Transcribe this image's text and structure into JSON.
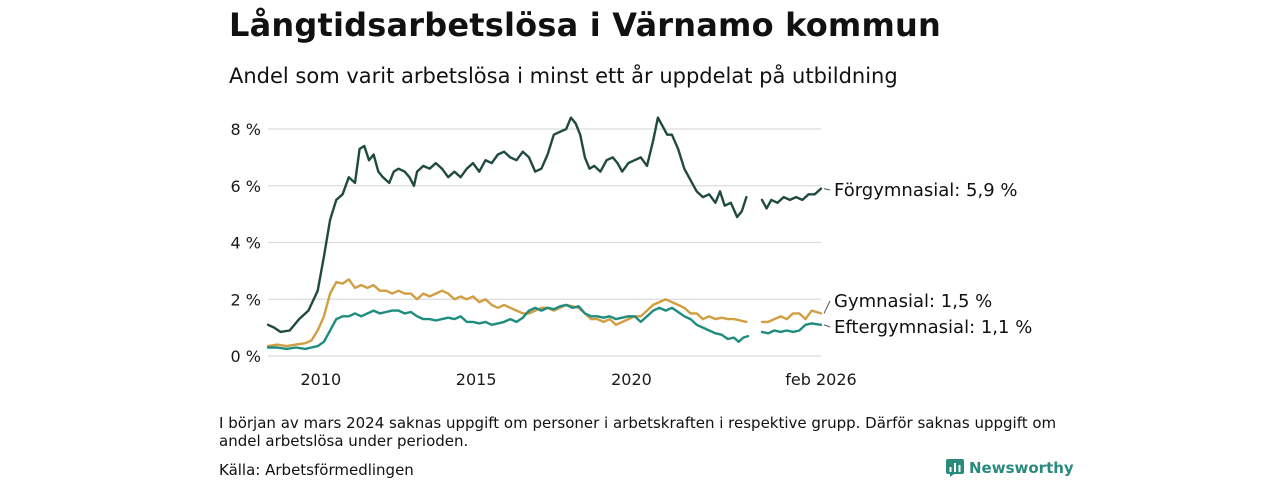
{
  "title": "Långtidsarbetslösa i Värnamo kommun",
  "subtitle": "Andel som varit arbetslösa i minst ett år uppdelat på utbildning",
  "note": "I början av mars 2024 saknas uppgift om personer i arbetskraften i respektive grupp. Därför saknas uppgift om andel arbetslösa under perioden.",
  "source": "Källa: Arbetsförmedlingen",
  "brand": {
    "name": "Newsworthy",
    "icon": "newsworthy-logo-icon",
    "color": "#2a8a7e"
  },
  "chart_data": {
    "type": "line",
    "title": "Långtidsarbetslösa i Värnamo kommun",
    "xlabel": "",
    "ylabel": "",
    "xlim": [
      2008.3,
      2026.1
    ],
    "ylim": [
      0,
      8
    ],
    "grid": true,
    "y_ticks": [
      0,
      2,
      4,
      6,
      8
    ],
    "y_tick_labels": [
      "0 %",
      "2 %",
      "4 %",
      "6 %",
      "8 %"
    ],
    "x_ticks": [
      2010,
      2015,
      2020,
      2026.1
    ],
    "x_tick_labels": [
      "2010",
      "2015",
      "2020",
      "feb 2026"
    ],
    "gap": [
      2023.75,
      2024.15
    ],
    "series": [
      {
        "name": "Förgymnasial",
        "end_label": "Förgymnasial: 5,9 %",
        "color": "#1f4a40",
        "points": [
          [
            2008.3,
            1.1
          ],
          [
            2008.5,
            1.0
          ],
          [
            2008.7,
            0.85
          ],
          [
            2009.0,
            0.9
          ],
          [
            2009.3,
            1.3
          ],
          [
            2009.6,
            1.6
          ],
          [
            2009.9,
            2.3
          ],
          [
            2010.1,
            3.5
          ],
          [
            2010.3,
            4.8
          ],
          [
            2010.5,
            5.5
          ],
          [
            2010.7,
            5.7
          ],
          [
            2010.9,
            6.3
          ],
          [
            2011.1,
            6.1
          ],
          [
            2011.25,
            7.3
          ],
          [
            2011.4,
            7.4
          ],
          [
            2011.55,
            6.9
          ],
          [
            2011.7,
            7.1
          ],
          [
            2011.85,
            6.5
          ],
          [
            2012.0,
            6.3
          ],
          [
            2012.2,
            6.1
          ],
          [
            2012.35,
            6.5
          ],
          [
            2012.5,
            6.6
          ],
          [
            2012.7,
            6.5
          ],
          [
            2012.85,
            6.3
          ],
          [
            2013.0,
            6.0
          ],
          [
            2013.1,
            6.5
          ],
          [
            2013.3,
            6.7
          ],
          [
            2013.5,
            6.6
          ],
          [
            2013.7,
            6.8
          ],
          [
            2013.9,
            6.6
          ],
          [
            2014.1,
            6.3
          ],
          [
            2014.3,
            6.5
          ],
          [
            2014.5,
            6.3
          ],
          [
            2014.7,
            6.6
          ],
          [
            2014.9,
            6.8
          ],
          [
            2015.1,
            6.5
          ],
          [
            2015.3,
            6.9
          ],
          [
            2015.5,
            6.8
          ],
          [
            2015.7,
            7.1
          ],
          [
            2015.9,
            7.2
          ],
          [
            2016.1,
            7.0
          ],
          [
            2016.3,
            6.9
          ],
          [
            2016.5,
            7.2
          ],
          [
            2016.7,
            7.0
          ],
          [
            2016.9,
            6.5
          ],
          [
            2017.1,
            6.6
          ],
          [
            2017.3,
            7.1
          ],
          [
            2017.5,
            7.8
          ],
          [
            2017.7,
            7.9
          ],
          [
            2017.9,
            8.0
          ],
          [
            2018.05,
            8.4
          ],
          [
            2018.2,
            8.2
          ],
          [
            2018.35,
            7.8
          ],
          [
            2018.5,
            7.0
          ],
          [
            2018.65,
            6.6
          ],
          [
            2018.8,
            6.7
          ],
          [
            2019.0,
            6.5
          ],
          [
            2019.2,
            6.9
          ],
          [
            2019.4,
            7.0
          ],
          [
            2019.55,
            6.8
          ],
          [
            2019.7,
            6.5
          ],
          [
            2019.9,
            6.8
          ],
          [
            2020.1,
            6.9
          ],
          [
            2020.3,
            7.0
          ],
          [
            2020.5,
            6.7
          ],
          [
            2020.7,
            7.6
          ],
          [
            2020.85,
            8.4
          ],
          [
            2021.0,
            8.1
          ],
          [
            2021.15,
            7.8
          ],
          [
            2021.3,
            7.8
          ],
          [
            2021.5,
            7.3
          ],
          [
            2021.7,
            6.6
          ],
          [
            2021.9,
            6.2
          ],
          [
            2022.1,
            5.8
          ],
          [
            2022.3,
            5.6
          ],
          [
            2022.5,
            5.7
          ],
          [
            2022.7,
            5.4
          ],
          [
            2022.85,
            5.8
          ],
          [
            2023.0,
            5.3
          ],
          [
            2023.2,
            5.4
          ],
          [
            2023.4,
            4.9
          ],
          [
            2023.55,
            5.1
          ],
          [
            2023.7,
            5.6
          ],
          [
            2024.2,
            5.5
          ],
          [
            2024.35,
            5.2
          ],
          [
            2024.5,
            5.5
          ],
          [
            2024.7,
            5.4
          ],
          [
            2024.9,
            5.6
          ],
          [
            2025.1,
            5.5
          ],
          [
            2025.3,
            5.6
          ],
          [
            2025.5,
            5.5
          ],
          [
            2025.7,
            5.7
          ],
          [
            2025.9,
            5.7
          ],
          [
            2026.1,
            5.9
          ]
        ]
      },
      {
        "name": "Gymnasial",
        "end_label": "Gymnasial: 1,5 %",
        "color": "#d29e42",
        "points": [
          [
            2008.3,
            0.35
          ],
          [
            2008.6,
            0.4
          ],
          [
            2008.9,
            0.35
          ],
          [
            2009.2,
            0.4
          ],
          [
            2009.5,
            0.45
          ],
          [
            2009.7,
            0.55
          ],
          [
            2009.9,
            0.9
          ],
          [
            2010.1,
            1.4
          ],
          [
            2010.3,
            2.2
          ],
          [
            2010.5,
            2.6
          ],
          [
            2010.7,
            2.55
          ],
          [
            2010.9,
            2.7
          ],
          [
            2011.1,
            2.4
          ],
          [
            2011.3,
            2.5
          ],
          [
            2011.5,
            2.4
          ],
          [
            2011.7,
            2.5
          ],
          [
            2011.9,
            2.3
          ],
          [
            2012.1,
            2.3
          ],
          [
            2012.3,
            2.2
          ],
          [
            2012.5,
            2.3
          ],
          [
            2012.7,
            2.2
          ],
          [
            2012.9,
            2.2
          ],
          [
            2013.1,
            2.0
          ],
          [
            2013.3,
            2.2
          ],
          [
            2013.5,
            2.1
          ],
          [
            2013.7,
            2.2
          ],
          [
            2013.9,
            2.3
          ],
          [
            2014.1,
            2.2
          ],
          [
            2014.3,
            2.0
          ],
          [
            2014.5,
            2.1
          ],
          [
            2014.7,
            2.0
          ],
          [
            2014.9,
            2.1
          ],
          [
            2015.1,
            1.9
          ],
          [
            2015.3,
            2.0
          ],
          [
            2015.5,
            1.8
          ],
          [
            2015.7,
            1.7
          ],
          [
            2015.9,
            1.8
          ],
          [
            2016.1,
            1.7
          ],
          [
            2016.3,
            1.6
          ],
          [
            2016.5,
            1.5
          ],
          [
            2016.7,
            1.5
          ],
          [
            2016.9,
            1.6
          ],
          [
            2017.1,
            1.7
          ],
          [
            2017.3,
            1.7
          ],
          [
            2017.5,
            1.6
          ],
          [
            2017.7,
            1.7
          ],
          [
            2017.9,
            1.8
          ],
          [
            2018.1,
            1.75
          ],
          [
            2018.3,
            1.7
          ],
          [
            2018.5,
            1.5
          ],
          [
            2018.7,
            1.3
          ],
          [
            2018.9,
            1.3
          ],
          [
            2019.1,
            1.2
          ],
          [
            2019.3,
            1.3
          ],
          [
            2019.5,
            1.1
          ],
          [
            2019.7,
            1.2
          ],
          [
            2019.9,
            1.3
          ],
          [
            2020.1,
            1.4
          ],
          [
            2020.3,
            1.4
          ],
          [
            2020.5,
            1.6
          ],
          [
            2020.7,
            1.8
          ],
          [
            2020.9,
            1.9
          ],
          [
            2021.1,
            2.0
          ],
          [
            2021.3,
            1.9
          ],
          [
            2021.5,
            1.8
          ],
          [
            2021.7,
            1.7
          ],
          [
            2021.9,
            1.5
          ],
          [
            2022.1,
            1.5
          ],
          [
            2022.3,
            1.3
          ],
          [
            2022.5,
            1.4
          ],
          [
            2022.7,
            1.3
          ],
          [
            2022.9,
            1.35
          ],
          [
            2023.1,
            1.3
          ],
          [
            2023.3,
            1.3
          ],
          [
            2023.5,
            1.25
          ],
          [
            2023.7,
            1.2
          ],
          [
            2024.2,
            1.2
          ],
          [
            2024.4,
            1.2
          ],
          [
            2024.6,
            1.3
          ],
          [
            2024.8,
            1.4
          ],
          [
            2025.0,
            1.3
          ],
          [
            2025.2,
            1.5
          ],
          [
            2025.4,
            1.5
          ],
          [
            2025.6,
            1.3
          ],
          [
            2025.8,
            1.6
          ],
          [
            2026.1,
            1.5
          ]
        ]
      },
      {
        "name": "Eftergymnasial",
        "end_label": "Eftergymnasial: 1,1 %",
        "color": "#1e8c7e",
        "points": [
          [
            2008.3,
            0.3
          ],
          [
            2008.6,
            0.3
          ],
          [
            2008.9,
            0.25
          ],
          [
            2009.2,
            0.3
          ],
          [
            2009.5,
            0.25
          ],
          [
            2009.7,
            0.3
          ],
          [
            2009.9,
            0.35
          ],
          [
            2010.1,
            0.5
          ],
          [
            2010.3,
            0.9
          ],
          [
            2010.5,
            1.3
          ],
          [
            2010.7,
            1.4
          ],
          [
            2010.9,
            1.4
          ],
          [
            2011.1,
            1.5
          ],
          [
            2011.3,
            1.4
          ],
          [
            2011.5,
            1.5
          ],
          [
            2011.7,
            1.6
          ],
          [
            2011.9,
            1.5
          ],
          [
            2012.1,
            1.55
          ],
          [
            2012.3,
            1.6
          ],
          [
            2012.5,
            1.6
          ],
          [
            2012.7,
            1.5
          ],
          [
            2012.9,
            1.55
          ],
          [
            2013.1,
            1.4
          ],
          [
            2013.3,
            1.3
          ],
          [
            2013.5,
            1.3
          ],
          [
            2013.7,
            1.25
          ],
          [
            2013.9,
            1.3
          ],
          [
            2014.1,
            1.35
          ],
          [
            2014.3,
            1.3
          ],
          [
            2014.5,
            1.4
          ],
          [
            2014.7,
            1.2
          ],
          [
            2014.9,
            1.2
          ],
          [
            2015.1,
            1.15
          ],
          [
            2015.3,
            1.2
          ],
          [
            2015.5,
            1.1
          ],
          [
            2015.7,
            1.15
          ],
          [
            2015.9,
            1.2
          ],
          [
            2016.1,
            1.3
          ],
          [
            2016.3,
            1.2
          ],
          [
            2016.5,
            1.35
          ],
          [
            2016.7,
            1.6
          ],
          [
            2016.9,
            1.7
          ],
          [
            2017.1,
            1.6
          ],
          [
            2017.3,
            1.7
          ],
          [
            2017.5,
            1.65
          ],
          [
            2017.7,
            1.75
          ],
          [
            2017.9,
            1.8
          ],
          [
            2018.1,
            1.7
          ],
          [
            2018.3,
            1.75
          ],
          [
            2018.5,
            1.5
          ],
          [
            2018.7,
            1.4
          ],
          [
            2018.9,
            1.4
          ],
          [
            2019.1,
            1.35
          ],
          [
            2019.3,
            1.4
          ],
          [
            2019.5,
            1.3
          ],
          [
            2019.7,
            1.35
          ],
          [
            2019.9,
            1.4
          ],
          [
            2020.1,
            1.4
          ],
          [
            2020.3,
            1.2
          ],
          [
            2020.5,
            1.4
          ],
          [
            2020.7,
            1.6
          ],
          [
            2020.9,
            1.7
          ],
          [
            2021.1,
            1.6
          ],
          [
            2021.3,
            1.7
          ],
          [
            2021.5,
            1.55
          ],
          [
            2021.7,
            1.4
          ],
          [
            2021.9,
            1.3
          ],
          [
            2022.1,
            1.1
          ],
          [
            2022.3,
            1.0
          ],
          [
            2022.5,
            0.9
          ],
          [
            2022.7,
            0.8
          ],
          [
            2022.9,
            0.75
          ],
          [
            2023.1,
            0.6
          ],
          [
            2023.3,
            0.65
          ],
          [
            2023.45,
            0.5
          ],
          [
            2023.6,
            0.65
          ],
          [
            2023.75,
            0.7
          ],
          [
            2024.2,
            0.85
          ],
          [
            2024.4,
            0.8
          ],
          [
            2024.6,
            0.9
          ],
          [
            2024.8,
            0.85
          ],
          [
            2025.0,
            0.9
          ],
          [
            2025.2,
            0.85
          ],
          [
            2025.4,
            0.9
          ],
          [
            2025.6,
            1.1
          ],
          [
            2025.8,
            1.15
          ],
          [
            2026.1,
            1.1
          ]
        ]
      }
    ]
  }
}
